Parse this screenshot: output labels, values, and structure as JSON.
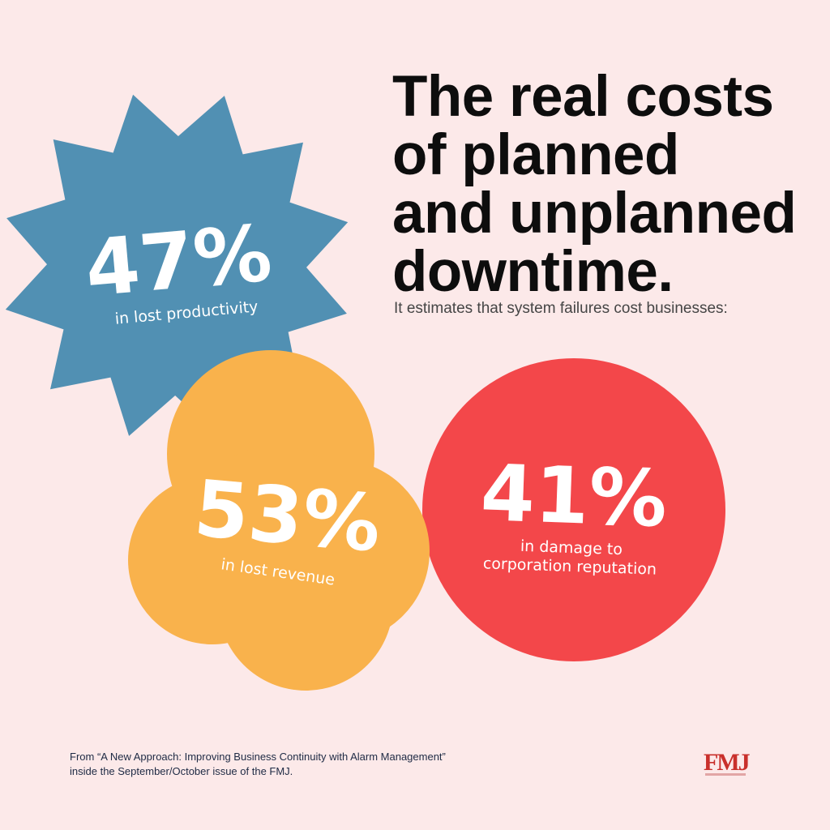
{
  "title_lines": [
    "The real costs",
    "of planned",
    "and unplanned",
    "downtime."
  ],
  "subtitle": "It estimates that system failures cost businesses:",
  "stats": {
    "productivity": {
      "value": "47%",
      "label": "in lost productivity",
      "color": "#5190b3"
    },
    "revenue": {
      "value": "53%",
      "label": "in lost revenue",
      "color": "#f9b24c"
    },
    "reputation": {
      "value": "41%",
      "label_line1": "in damage to",
      "label_line2": "corporation reputation",
      "color": "#f3474a"
    }
  },
  "footer": {
    "line1": "From “A New Approach: Improving Business Continuity with Alarm Management”",
    "line2": "inside the September/October issue of the FMJ."
  },
  "logo": {
    "text": "FMJ",
    "color": "#c9302c"
  }
}
